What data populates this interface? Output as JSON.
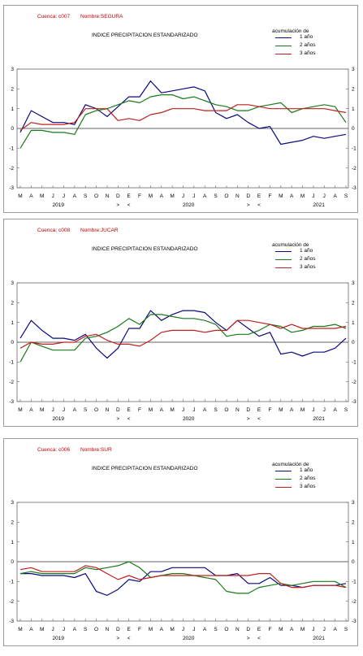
{
  "colors": {
    "series": [
      "#0a0a80",
      "#1a7a1a",
      "#c02020"
    ],
    "zero_line": "#333333",
    "frame": "#9a9a9a",
    "header_text": "#c00000"
  },
  "x_axis": {
    "month_labels": [
      "M",
      "A",
      "M",
      "J",
      "J",
      "A",
      "S",
      "O",
      "N",
      "D",
      "E",
      "F",
      "M",
      "A",
      "M",
      "J",
      "J",
      "A",
      "S",
      "O",
      "N",
      "D",
      "E",
      "F",
      "M",
      "A",
      "M",
      "J",
      "J",
      "A",
      "S"
    ],
    "year_labels": [
      {
        "label": "2019",
        "at": 3.5
      },
      {
        "label": "2020",
        "at": 15.5
      },
      {
        "label": "2021",
        "at": 27.5
      }
    ],
    "marker_labels": [
      {
        "label": ">",
        "at": 9
      },
      {
        "label": "<",
        "at": 10
      },
      {
        "label": ">",
        "at": 21
      },
      {
        "label": "<",
        "at": 22
      }
    ]
  },
  "panels": [
    {
      "cuenca": "Cuenca: c007",
      "nombre": "Nombre:SEGURA",
      "title": "INDICE  PRECIPITACION  ESTANDARIZADO",
      "legend_title": "acumulación de",
      "chart_data": {
        "type": "line",
        "title": "INDICE  PRECIPITACION  ESTANDARIZADO",
        "ylim": [
          -3,
          3
        ],
        "yticks": [
          3,
          2,
          1,
          0,
          -1,
          -2,
          -3
        ],
        "x": [
          1,
          2,
          3,
          4,
          5,
          6,
          7,
          8,
          9,
          10,
          11,
          12,
          13,
          14,
          15,
          16,
          17,
          18,
          19,
          20,
          21,
          22,
          23,
          24,
          25,
          26,
          27,
          28,
          29,
          30,
          31
        ],
        "series": [
          {
            "name": "1 año",
            "values": [
              -0.2,
              0.9,
              0.6,
              0.3,
              0.3,
              0.2,
              1.2,
              1.0,
              0.6,
              1.1,
              1.6,
              1.6,
              2.4,
              1.8,
              1.9,
              2.0,
              2.1,
              1.9,
              0.8,
              0.5,
              0.7,
              0.3,
              0.0,
              0.1,
              -0.8,
              -0.7,
              -0.6,
              -0.4,
              -0.5,
              -0.4,
              -0.3
            ]
          },
          {
            "name": "2 años",
            "values": [
              -1.0,
              -0.1,
              -0.1,
              -0.2,
              -0.2,
              -0.3,
              0.7,
              0.9,
              1.0,
              1.2,
              1.4,
              1.3,
              1.6,
              1.7,
              1.7,
              1.5,
              1.6,
              1.4,
              1.2,
              1.1,
              0.9,
              0.9,
              1.1,
              1.2,
              1.3,
              0.8,
              1.0,
              1.1,
              1.2,
              1.1,
              0.3
            ]
          },
          {
            "name": "3 años",
            "values": [
              -0.1,
              0.3,
              0.2,
              0.2,
              0.2,
              0.3,
              1.0,
              1.0,
              1.0,
              0.4,
              0.5,
              0.4,
              0.7,
              0.8,
              1.0,
              1.0,
              1.0,
              0.9,
              0.9,
              0.9,
              1.2,
              1.2,
              1.1,
              1.0,
              1.0,
              1.0,
              1.0,
              1.0,
              1.0,
              0.9,
              0.8
            ]
          }
        ]
      }
    },
    {
      "cuenca": "Cuenca: c008",
      "nombre": "Nombre:JUCAR",
      "title": "INDICE  PRECIPITACION  ESTANDARIZADO",
      "legend_title": "acumulación de",
      "chart_data": {
        "type": "line",
        "title": "INDICE  PRECIPITACION  ESTANDARIZADO",
        "ylim": [
          -3,
          3
        ],
        "yticks": [
          3,
          2,
          1,
          0,
          -1,
          -2,
          -3
        ],
        "x": [
          1,
          2,
          3,
          4,
          5,
          6,
          7,
          8,
          9,
          10,
          11,
          12,
          13,
          14,
          15,
          16,
          17,
          18,
          19,
          20,
          21,
          22,
          23,
          24,
          25,
          26,
          27,
          28,
          29,
          30,
          31
        ],
        "series": [
          {
            "name": "1 año",
            "values": [
              0.2,
              1.1,
              0.6,
              0.2,
              0.2,
              0.1,
              0.4,
              -0.3,
              -0.8,
              -0.3,
              0.7,
              0.7,
              1.6,
              1.1,
              1.4,
              1.6,
              1.6,
              1.5,
              1.0,
              0.6,
              1.1,
              0.7,
              0.3,
              0.5,
              -0.6,
              -0.5,
              -0.7,
              -0.5,
              -0.5,
              -0.3,
              0.2
            ]
          },
          {
            "name": "2 años",
            "values": [
              -1.0,
              0.0,
              -0.2,
              -0.4,
              -0.4,
              -0.4,
              0.2,
              0.3,
              0.5,
              0.8,
              1.2,
              0.9,
              1.4,
              1.4,
              1.3,
              1.2,
              1.2,
              1.1,
              0.9,
              0.3,
              0.4,
              0.4,
              0.6,
              0.9,
              0.8,
              0.5,
              0.6,
              0.8,
              0.8,
              0.9,
              0.7
            ]
          },
          {
            "name": "3 años",
            "values": [
              -0.3,
              0.0,
              -0.1,
              -0.1,
              0.0,
              0.0,
              0.3,
              0.4,
              0.1,
              -0.1,
              -0.1,
              -0.2,
              0.1,
              0.5,
              0.6,
              0.6,
              0.6,
              0.5,
              0.6,
              0.6,
              1.1,
              1.1,
              1.0,
              0.9,
              0.7,
              0.9,
              0.7,
              0.7,
              0.7,
              0.7,
              0.8
            ]
          }
        ]
      }
    },
    {
      "cuenca": "Cuenca: c006",
      "nombre": "Nombre:SUR",
      "title": "INDICE  PRECIPITACION  ESTANDARIZADO",
      "legend_title": "acumulación de",
      "chart_data": {
        "type": "line",
        "title": "INDICE  PRECIPITACION  ESTANDARIZADO",
        "ylim": [
          -3,
          3
        ],
        "yticks": [
          3,
          2,
          1,
          0,
          -1,
          -2,
          -3
        ],
        "x": [
          1,
          2,
          3,
          4,
          5,
          6,
          7,
          8,
          9,
          10,
          11,
          12,
          13,
          14,
          15,
          16,
          17,
          18,
          19,
          20,
          21,
          22,
          23,
          24,
          25,
          26,
          27,
          28,
          29,
          30,
          31
        ],
        "series": [
          {
            "name": "1 año",
            "values": [
              -0.6,
              -0.6,
              -0.7,
              -0.7,
              -0.7,
              -0.8,
              -0.6,
              -1.5,
              -1.7,
              -1.4,
              -0.9,
              -1.0,
              -0.5,
              -0.5,
              -0.3,
              -0.3,
              -0.3,
              -0.3,
              -0.7,
              -0.7,
              -0.6,
              -1.1,
              -1.1,
              -0.8,
              -1.2,
              -1.2,
              -1.3,
              -1.2,
              -1.2,
              -1.2,
              -1.1
            ]
          },
          {
            "name": "2 años",
            "values": [
              -0.6,
              -0.5,
              -0.6,
              -0.6,
              -0.6,
              -0.6,
              -0.3,
              -0.4,
              -0.3,
              -0.2,
              0.0,
              -0.3,
              -0.8,
              -0.7,
              -0.6,
              -0.6,
              -0.7,
              -0.8,
              -0.9,
              -1.5,
              -1.6,
              -1.6,
              -1.3,
              -1.2,
              -1.1,
              -1.2,
              -1.1,
              -1.0,
              -1.0,
              -1.0,
              -1.3
            ]
          },
          {
            "name": "3 años",
            "values": [
              -0.4,
              -0.3,
              -0.5,
              -0.5,
              -0.5,
              -0.5,
              -0.2,
              -0.3,
              -0.6,
              -0.9,
              -0.7,
              -0.9,
              -0.8,
              -0.7,
              -0.7,
              -0.7,
              -0.7,
              -0.7,
              -0.7,
              -0.7,
              -0.7,
              -0.7,
              -0.6,
              -0.6,
              -1.1,
              -1.3,
              -1.3,
              -1.2,
              -1.2,
              -1.2,
              -1.3
            ]
          }
        ]
      }
    }
  ]
}
